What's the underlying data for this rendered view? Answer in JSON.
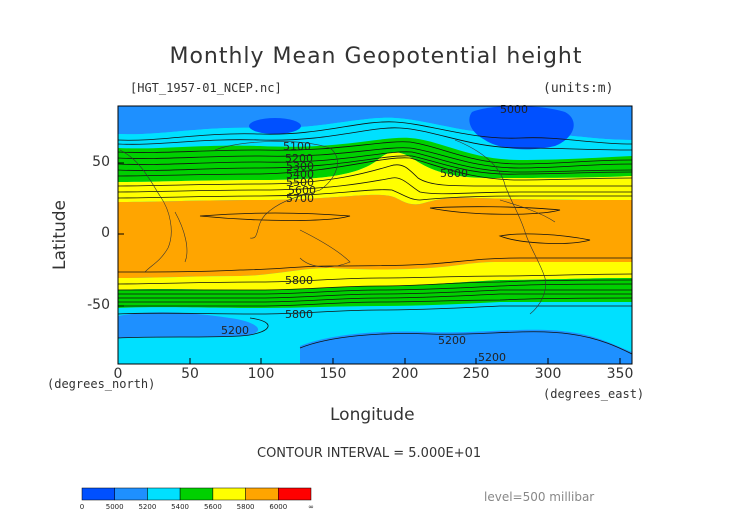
{
  "title": "Monthly Mean Geopotential height",
  "file_label": "[HGT_1957-01_NCEP.nc]",
  "units_label": "(units:m)",
  "axes": {
    "y_label": "Latitude",
    "x_label": "Longitude",
    "y_ticks": [
      "50",
      "0",
      "-50"
    ],
    "x_ticks": [
      "0",
      "50",
      "100",
      "150",
      "200",
      "250",
      "300",
      "350"
    ],
    "y_units": "(degrees_north)",
    "x_units": "(degrees_east)"
  },
  "contour_interval": "CONTOUR INTERVAL = 5.000E+01",
  "level": "level=500 millibar",
  "contour_labels": [
    "5000",
    "5100",
    "5200",
    "5300",
    "5400",
    "5500",
    "5600",
    "5700",
    "5800",
    "5800",
    "5800",
    "5200",
    "5200",
    "5200"
  ],
  "colorbar": {
    "labels": [
      "0",
      "5000",
      "5200",
      "5400",
      "5600",
      "5800",
      "6000",
      "∞"
    ],
    "colors": [
      "#0050ff",
      "#1e90ff",
      "#00e0ff",
      "#00d000",
      "#ffff00",
      "#ffa500",
      "#ff0000"
    ]
  },
  "chart_data": {
    "type": "contour-map",
    "title": "Monthly Mean Geopotential height",
    "variable": "HGT",
    "units": "m",
    "level": "500 millibar",
    "x_range": [
      0,
      357.5
    ],
    "y_range": [
      -90,
      90
    ],
    "contour_interval": 50,
    "color_bins": [
      {
        "range": [
          0,
          5000
        ],
        "color": "#0050ff"
      },
      {
        "range": [
          5000,
          5200
        ],
        "color": "#1e90ff"
      },
      {
        "range": [
          5200,
          5400
        ],
        "color": "#00e0ff"
      },
      {
        "range": [
          5400,
          5600
        ],
        "color": "#00d000"
      },
      {
        "range": [
          5600,
          5800
        ],
        "color": "#ffff00"
      },
      {
        "range": [
          5800,
          6000
        ],
        "color": "#ffa500"
      },
      {
        "range": [
          6000,
          null
        ],
        "color": "#ff0000"
      }
    ]
  }
}
